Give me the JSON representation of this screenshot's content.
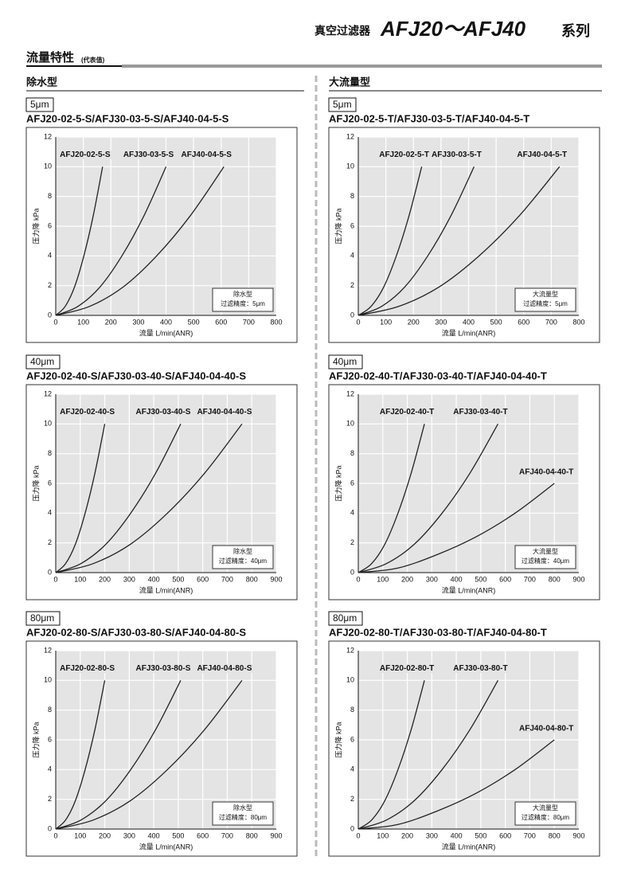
{
  "header": {
    "product": "真空过滤器",
    "series": "AFJ20～AFJ40",
    "suffix": "系列",
    "section": "流量特性",
    "section_note": "(代表值)",
    "columns": [
      "除水型",
      "大流量型"
    ]
  },
  "chart_data": [
    {
      "type": "line",
      "filter_grade": "5μm",
      "title": "AFJ20-02-5-S/AFJ30-03-5-S/AFJ40-04-5-S",
      "xlabel": "流量 L/min(ANR)",
      "ylabel": "压力降 kPa",
      "note": [
        "除水型",
        "过滤精度：5μm"
      ],
      "xlim": [
        0,
        800
      ],
      "ylim": [
        0,
        12
      ],
      "xticks": [
        0,
        100,
        200,
        300,
        400,
        500,
        600,
        700,
        800
      ],
      "yticks": [
        0,
        2,
        4,
        6,
        8,
        10,
        12
      ],
      "grid": true,
      "color": "#222222",
      "series": [
        {
          "name": "AFJ20-02-5-S",
          "x": [
            0,
            34,
            68,
            102,
            136,
            170
          ],
          "values": [
            0,
            0.6,
            1.9,
            4.0,
            6.7,
            10
          ]
        },
        {
          "name": "AFJ30-03-5-S",
          "x": [
            0,
            80,
            160,
            240,
            320,
            400
          ],
          "values": [
            0,
            0.6,
            1.9,
            4.0,
            6.7,
            10
          ]
        },
        {
          "name": "AFJ40-04-5-S",
          "x": [
            0,
            122,
            244,
            366,
            488,
            610
          ],
          "values": [
            0,
            0.6,
            1.9,
            4.0,
            6.7,
            10
          ]
        }
      ]
    },
    {
      "type": "line",
      "filter_grade": "5μm",
      "title": "AFJ20-02-5-T/AFJ30-03-5-T/AFJ40-04-5-T",
      "xlabel": "流量 L/min(ANR)",
      "ylabel": "压力降 kPa",
      "note": [
        "大流量型",
        "过滤精度：5μm"
      ],
      "xlim": [
        0,
        800
      ],
      "ylim": [
        0,
        12
      ],
      "xticks": [
        0,
        100,
        200,
        300,
        400,
        500,
        600,
        700,
        800
      ],
      "yticks": [
        0,
        2,
        4,
        6,
        8,
        10,
        12
      ],
      "grid": true,
      "color": "#222222",
      "series": [
        {
          "name": "AFJ20-02-5-T",
          "x": [
            0,
            46,
            92,
            138,
            184,
            230
          ],
          "values": [
            0,
            0.6,
            1.9,
            4.0,
            6.7,
            10
          ]
        },
        {
          "name": "AFJ30-03-5-T",
          "x": [
            0,
            84,
            168,
            252,
            336,
            420
          ],
          "values": [
            0,
            0.6,
            1.9,
            4.0,
            6.7,
            10
          ]
        },
        {
          "name": "AFJ40-04-5-T",
          "x": [
            0,
            146,
            292,
            438,
            584,
            730
          ],
          "values": [
            0,
            0.6,
            1.9,
            4.0,
            6.7,
            10
          ]
        }
      ]
    },
    {
      "type": "line",
      "filter_grade": "40μm",
      "title": "AFJ20-02-40-S/AFJ30-03-40-S/AFJ40-04-40-S",
      "xlabel": "流量 L/min(ANR)",
      "ylabel": "压力降 kPa",
      "note": [
        "除水型",
        "过滤精度：40μm"
      ],
      "xlim": [
        0,
        900
      ],
      "ylim": [
        0,
        12
      ],
      "xticks": [
        0,
        100,
        200,
        300,
        400,
        500,
        600,
        700,
        800,
        900
      ],
      "yticks": [
        0,
        2,
        4,
        6,
        8,
        10,
        12
      ],
      "grid": true,
      "color": "#222222",
      "series": [
        {
          "name": "AFJ20-02-40-S",
          "x": [
            0,
            40,
            80,
            120,
            160,
            200
          ],
          "values": [
            0,
            0.6,
            1.9,
            4.0,
            6.7,
            10
          ]
        },
        {
          "name": "AFJ30-03-40-S",
          "x": [
            0,
            102,
            204,
            306,
            408,
            510
          ],
          "values": [
            0,
            0.6,
            1.9,
            4.0,
            6.7,
            10
          ]
        },
        {
          "name": "AFJ40-04-40-S",
          "x": [
            0,
            152,
            304,
            456,
            608,
            760
          ],
          "values": [
            0,
            0.6,
            1.9,
            4.0,
            6.7,
            10
          ]
        }
      ]
    },
    {
      "type": "line",
      "filter_grade": "40μm",
      "title": "AFJ20-02-40-T/AFJ30-03-40-T/AFJ40-04-40-T",
      "xlabel": "流量 L/min(ANR)",
      "ylabel": "压力降 kPa",
      "note": [
        "大流量型",
        "过滤精度：40μm"
      ],
      "xlim": [
        0,
        900
      ],
      "ylim": [
        0,
        12
      ],
      "xticks": [
        0,
        100,
        200,
        300,
        400,
        500,
        600,
        700,
        800,
        900
      ],
      "yticks": [
        0,
        2,
        4,
        6,
        8,
        10,
        12
      ],
      "grid": true,
      "color": "#222222",
      "series": [
        {
          "name": "AFJ20-02-40-T",
          "x": [
            0,
            54,
            108,
            162,
            216,
            270
          ],
          "values": [
            0,
            0.6,
            1.9,
            4.0,
            6.7,
            10
          ]
        },
        {
          "name": "AFJ30-03-40-T",
          "x": [
            0,
            114,
            228,
            342,
            456,
            570
          ],
          "values": [
            0,
            0.6,
            1.9,
            4.0,
            6.7,
            10
          ]
        },
        {
          "name": "AFJ40-04-40-T",
          "x": [
            0,
            160,
            320,
            480,
            640,
            800
          ],
          "values": [
            0,
            0.3,
            1.2,
            2.4,
            4.0,
            6
          ]
        }
      ]
    },
    {
      "type": "line",
      "filter_grade": "80μm",
      "title": "AFJ20-02-80-S/AFJ30-03-80-S/AFJ40-04-80-S",
      "xlabel": "流量 L/min(ANR)",
      "ylabel": "压力降 kPa",
      "note": [
        "除水型",
        "过滤精度：80μm"
      ],
      "xlim": [
        0,
        900
      ],
      "ylim": [
        0,
        12
      ],
      "xticks": [
        0,
        100,
        200,
        300,
        400,
        500,
        600,
        700,
        800,
        900
      ],
      "yticks": [
        0,
        2,
        4,
        6,
        8,
        10,
        12
      ],
      "grid": true,
      "color": "#222222",
      "series": [
        {
          "name": "AFJ20-02-80-S",
          "x": [
            0,
            40,
            80,
            120,
            160,
            200
          ],
          "values": [
            0,
            0.6,
            1.9,
            4.0,
            6.7,
            10
          ]
        },
        {
          "name": "AFJ30-03-80-S",
          "x": [
            0,
            102,
            204,
            306,
            408,
            510
          ],
          "values": [
            0,
            0.6,
            1.9,
            4.0,
            6.7,
            10
          ]
        },
        {
          "name": "AFJ40-04-80-S",
          "x": [
            0,
            152,
            304,
            456,
            608,
            760
          ],
          "values": [
            0,
            0.6,
            1.9,
            4.0,
            6.7,
            10
          ]
        }
      ]
    },
    {
      "type": "line",
      "filter_grade": "80μm",
      "title": "AFJ20-02-80-T/AFJ30-03-80-T/AFJ40-04-80-T",
      "xlabel": "流量 L/min(ANR)",
      "ylabel": "压力降 kPa",
      "note": [
        "大流量型",
        "过滤精度：80μm"
      ],
      "xlim": [
        0,
        900
      ],
      "ylim": [
        0,
        12
      ],
      "xticks": [
        0,
        100,
        200,
        300,
        400,
        500,
        600,
        700,
        800,
        900
      ],
      "yticks": [
        0,
        2,
        4,
        6,
        8,
        10,
        12
      ],
      "grid": true,
      "color": "#222222",
      "series": [
        {
          "name": "AFJ20-02-80-T",
          "x": [
            0,
            54,
            108,
            162,
            216,
            270
          ],
          "values": [
            0,
            0.6,
            1.9,
            4.0,
            6.7,
            10
          ]
        },
        {
          "name": "AFJ30-03-80-T",
          "x": [
            0,
            114,
            228,
            342,
            456,
            570
          ],
          "values": [
            0,
            0.6,
            1.9,
            4.0,
            6.7,
            10
          ]
        },
        {
          "name": "AFJ40-04-80-T",
          "x": [
            0,
            160,
            320,
            480,
            640,
            800
          ],
          "values": [
            0,
            0.3,
            1.2,
            2.4,
            4.0,
            6
          ]
        }
      ]
    }
  ]
}
